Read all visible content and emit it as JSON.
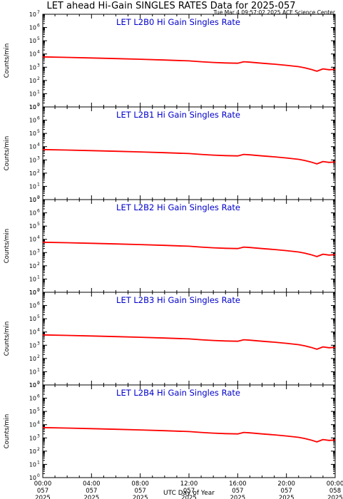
{
  "title": "LET ahead Hi-Gain SINGLES RATES Data for 2025-057",
  "timestamp": "Tue Mar  4 09:57:02 2025 ACE Science Center",
  "xlabel": "UTC Day of Year",
  "ylabel": "Counts/min",
  "colors": {
    "series": "#ff0000",
    "panel_title": "#0000cc",
    "axes": "#000000"
  },
  "chart_data": [
    {
      "type": "line",
      "title": "LET L2B0 Hi Gain Singles Rate",
      "yscale": "log",
      "ylim": [
        1,
        10000000
      ],
      "xlim": [
        0,
        24
      ],
      "x": [
        0,
        2,
        4,
        6,
        8,
        10,
        12,
        13,
        14,
        15,
        16,
        16.5,
        17,
        18,
        19,
        20,
        21,
        21.5,
        22,
        22.5,
        23,
        23.5,
        24
      ],
      "values": [
        6000,
        5500,
        5000,
        4500,
        4000,
        3500,
        3000,
        2600,
        2300,
        2100,
        2000,
        2600,
        2400,
        2000,
        1700,
        1400,
        1100,
        900,
        700,
        500,
        750,
        650,
        700
      ]
    },
    {
      "type": "line",
      "title": "LET L2B1 Hi Gain Singles Rate",
      "yscale": "log",
      "ylim": [
        1,
        10000000
      ],
      "xlim": [
        0,
        24
      ],
      "x": [
        0,
        2,
        4,
        6,
        8,
        10,
        12,
        13,
        14,
        15,
        16,
        16.5,
        17,
        18,
        19,
        20,
        21,
        21.5,
        22,
        22.5,
        23,
        23.5,
        24
      ],
      "values": [
        6000,
        5500,
        5000,
        4500,
        4000,
        3500,
        3000,
        2600,
        2300,
        2100,
        2000,
        2600,
        2400,
        2000,
        1700,
        1400,
        1100,
        900,
        700,
        500,
        750,
        650,
        700
      ]
    },
    {
      "type": "line",
      "title": "LET L2B2 Hi Gain Singles Rate",
      "yscale": "log",
      "ylim": [
        1,
        10000000
      ],
      "xlim": [
        0,
        24
      ],
      "x": [
        0,
        2,
        4,
        6,
        8,
        10,
        12,
        13,
        14,
        15,
        16,
        16.5,
        17,
        18,
        19,
        20,
        21,
        21.5,
        22,
        22.5,
        23,
        23.5,
        24
      ],
      "values": [
        6000,
        5500,
        5000,
        4500,
        4000,
        3500,
        3000,
        2600,
        2300,
        2100,
        2000,
        2600,
        2400,
        2000,
        1700,
        1400,
        1100,
        900,
        700,
        500,
        750,
        650,
        700
      ]
    },
    {
      "type": "line",
      "title": "LET L2B3 Hi Gain Singles Rate",
      "yscale": "log",
      "ylim": [
        1,
        10000000
      ],
      "xlim": [
        0,
        24
      ],
      "x": [
        0,
        2,
        4,
        6,
        8,
        10,
        12,
        13,
        14,
        15,
        16,
        16.5,
        17,
        18,
        19,
        20,
        21,
        21.5,
        22,
        22.5,
        23,
        23.5,
        24
      ],
      "values": [
        6000,
        5500,
        5000,
        4500,
        4000,
        3500,
        3000,
        2600,
        2300,
        2100,
        2000,
        2600,
        2400,
        2000,
        1700,
        1400,
        1100,
        900,
        700,
        500,
        750,
        650,
        700
      ]
    },
    {
      "type": "line",
      "title": "LET L2B4 Hi Gain Singles Rate",
      "yscale": "log",
      "ylim": [
        1,
        10000000
      ],
      "xlim": [
        0,
        24
      ],
      "x": [
        0,
        2,
        4,
        6,
        8,
        10,
        12,
        13,
        14,
        15,
        16,
        16.5,
        17,
        18,
        19,
        20,
        21,
        21.5,
        22,
        22.5,
        23,
        23.5,
        24
      ],
      "values": [
        6000,
        5500,
        5000,
        4500,
        4000,
        3500,
        3000,
        2600,
        2300,
        2100,
        2000,
        2600,
        2400,
        2000,
        1700,
        1400,
        1100,
        900,
        700,
        500,
        750,
        650,
        700
      ]
    }
  ],
  "y_tick_exponents": [
    0,
    1,
    2,
    3,
    4,
    5,
    6,
    7
  ],
  "y_tick_base": "10",
  "x_ticks": [
    {
      "hour": 0,
      "time": "00:00",
      "doy": "057",
      "year": "2025"
    },
    {
      "hour": 4,
      "time": "04:00",
      "doy": "057",
      "year": "2025"
    },
    {
      "hour": 8,
      "time": "08:00",
      "doy": "057",
      "year": "2025"
    },
    {
      "hour": 12,
      "time": "12:00",
      "doy": "057",
      "year": "2025"
    },
    {
      "hour": 16,
      "time": "16:00",
      "doy": "057",
      "year": "2025"
    },
    {
      "hour": 20,
      "time": "20:00",
      "doy": "057",
      "year": "2025"
    },
    {
      "hour": 24,
      "time": "00:00",
      "doy": "058",
      "year": "2025"
    }
  ]
}
